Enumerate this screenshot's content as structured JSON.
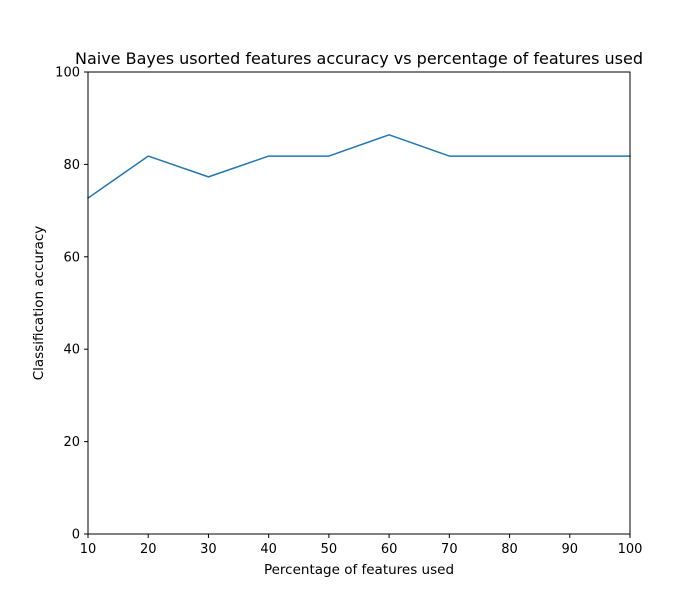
{
  "chart_data": {
    "type": "line",
    "title": "Naive Bayes usorted features accuracy vs percentage of features used",
    "xlabel": "Percentage of features used",
    "ylabel": "Classification accuracy",
    "x": [
      10,
      20,
      30,
      40,
      50,
      60,
      70,
      80,
      90,
      100
    ],
    "series": [
      {
        "values": [
          72.7,
          81.8,
          77.3,
          81.8,
          81.8,
          86.4,
          81.8,
          81.8,
          81.8,
          81.8
        ]
      }
    ],
    "xlim": [
      10,
      100
    ],
    "ylim": [
      0,
      100
    ],
    "xticks": [
      "10",
      "20",
      "30",
      "40",
      "50",
      "60",
      "70",
      "80",
      "90",
      "100"
    ],
    "yticks": [
      "0",
      "20",
      "40",
      "60",
      "80",
      "100"
    ],
    "grid": false,
    "line_color": "#1f77b4"
  }
}
